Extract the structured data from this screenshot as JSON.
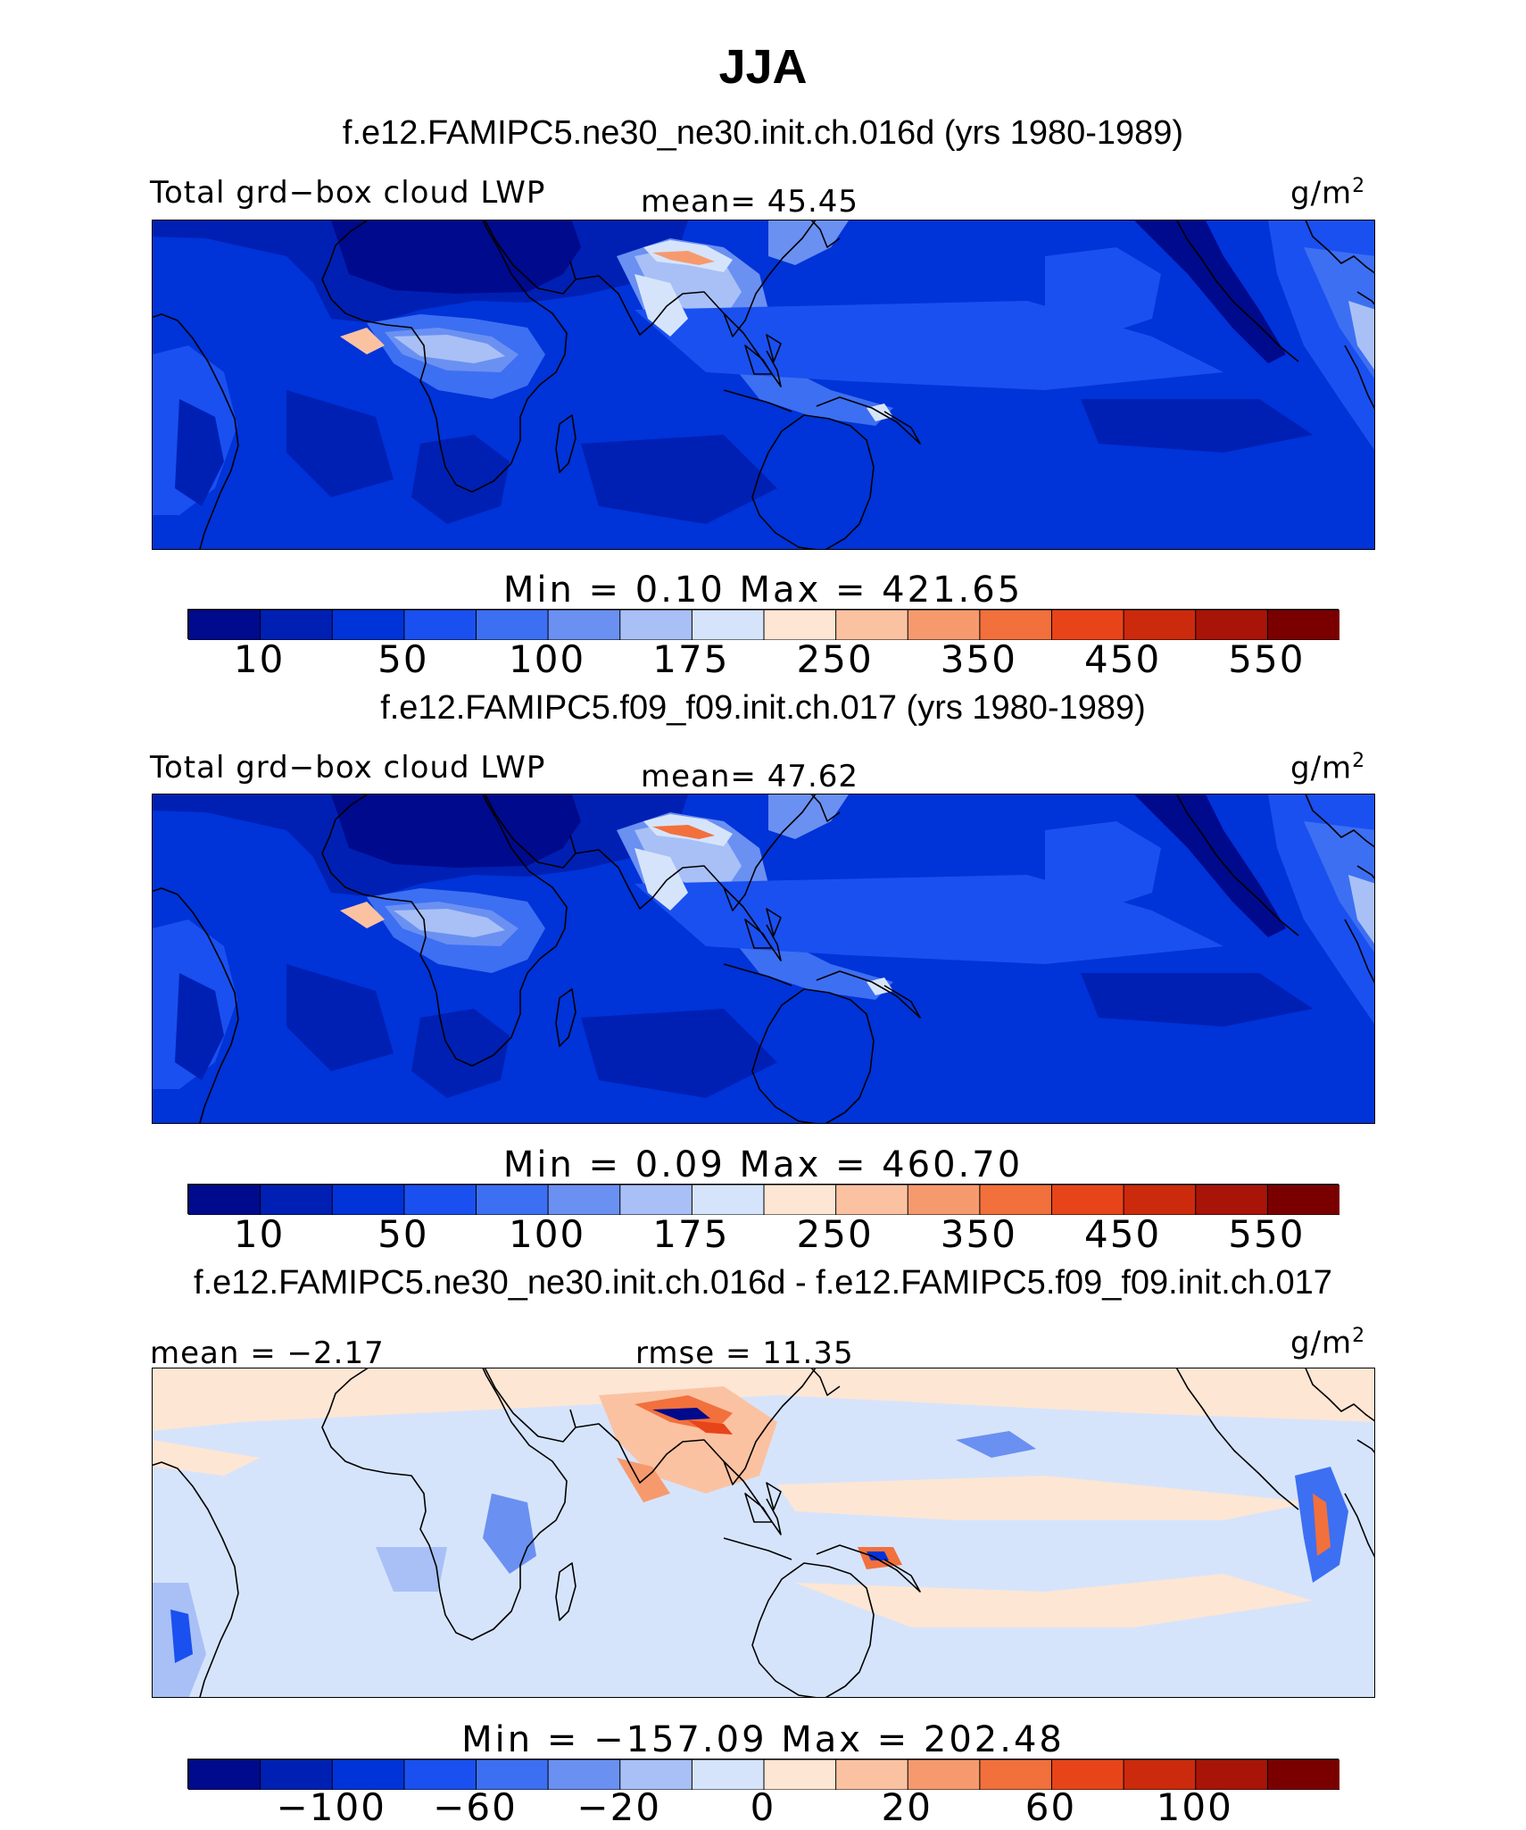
{
  "figure": {
    "title": "JJA"
  },
  "panels": [
    {
      "case_title": "f.e12.FAMIPC5.ne30_ne30.init.ch.016d (yrs 1980-1989)",
      "left_label": "Total grd−box cloud LWP",
      "center_label": "mean=  45.45",
      "units": "g/m",
      "units_exp": "2",
      "stats": "Min =   0.10 Max = 421.65",
      "field": "absolute",
      "colors": [
        "#000a8c",
        "#0020b4",
        "#0033d8",
        "#1a50f0",
        "#3d6ff2",
        "#6a90f2",
        "#a8c0f6",
        "#d6e4fb",
        "#fde6d4",
        "#fbc2a2",
        "#f69a6e",
        "#f2703c",
        "#e8441a",
        "#cc2a0c",
        "#a81408",
        "#7a0000"
      ],
      "tick_labels": [
        "10",
        "50",
        "100",
        "175",
        "250",
        "350",
        "450",
        "550"
      ],
      "colormap_values": [
        10,
        50,
        100,
        175,
        250,
        350,
        450,
        550
      ]
    },
    {
      "case_title": "f.e12.FAMIPC5.f09_f09.init.ch.017 (yrs 1980-1989)",
      "left_label": "Total grd−box cloud LWP",
      "center_label": "mean=  47.62",
      "units": "g/m",
      "units_exp": "2",
      "stats": "Min =   0.09 Max = 460.70",
      "field": "absolute",
      "colors": [
        "#000a8c",
        "#0020b4",
        "#0033d8",
        "#1a50f0",
        "#3d6ff2",
        "#6a90f2",
        "#a8c0f6",
        "#d6e4fb",
        "#fde6d4",
        "#fbc2a2",
        "#f69a6e",
        "#f2703c",
        "#e8441a",
        "#cc2a0c",
        "#a81408",
        "#7a0000"
      ],
      "tick_labels": [
        "10",
        "50",
        "100",
        "175",
        "250",
        "350",
        "450",
        "550"
      ],
      "colormap_values": [
        10,
        50,
        100,
        175,
        250,
        350,
        450,
        550
      ]
    },
    {
      "case_title": "f.e12.FAMIPC5.ne30_ne30.init.ch.016d - f.e12.FAMIPC5.f09_f09.init.ch.017",
      "left_label": "mean =  −2.17",
      "center_label": "rmse =   11.35",
      "units": "g/m",
      "units_exp": "2",
      "stats": "Min = −157.09 Max = 202.48",
      "field": "difference",
      "colors": [
        "#000a8c",
        "#0020b4",
        "#0033d8",
        "#1a50f0",
        "#3d6ff2",
        "#6a90f2",
        "#a8c0f6",
        "#d6e4fb",
        "#fde6d4",
        "#fbc2a2",
        "#f69a6e",
        "#f2703c",
        "#e8441a",
        "#cc2a0c",
        "#a81408",
        "#7a0000"
      ],
      "tick_labels": [
        "−100",
        "−60",
        "−20",
        "0",
        "20",
        "60",
        "100"
      ],
      "colormap_values": [
        -100,
        -60,
        -20,
        0,
        20,
        60,
        100
      ]
    }
  ]
}
